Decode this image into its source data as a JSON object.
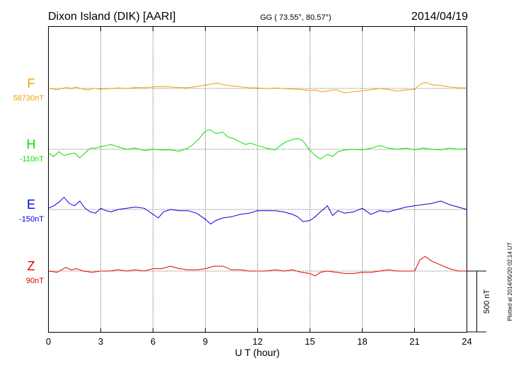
{
  "header": {
    "station": "Dixon Island (DIK)  [AARI]",
    "coords": "GG ( 73.55°,  80.57°)",
    "date": "2014/04/19"
  },
  "footer": {
    "plotted": "Plotted at 2014/05/20 02:14 UT"
  },
  "chart_data": {
    "type": "line",
    "xlabel": "U T (hour)",
    "xlim": [
      0,
      24
    ],
    "x_ticks": [
      0,
      3,
      6,
      9,
      12,
      15,
      18,
      21,
      24
    ],
    "x_tick_labels": [
      "0",
      "3",
      "6",
      "9",
      "12",
      "15",
      "18",
      "21",
      "24"
    ],
    "scale_bar": {
      "label": "500 nT",
      "value_nT": 500
    },
    "grid": true,
    "series": [
      {
        "name": "F",
        "baseline_label": "58730nT",
        "color": "#f0a000",
        "t": [
          0,
          0.5,
          1,
          1.3,
          1.6,
          2,
          2.3,
          2.6,
          3,
          3.5,
          4,
          4.5,
          5,
          5.5,
          6,
          6.5,
          7,
          7.5,
          8,
          8.5,
          9,
          9.3,
          9.7,
          10,
          10.5,
          11,
          11.5,
          12,
          12.5,
          13,
          13.5,
          14,
          14.5,
          15,
          15.3,
          15.7,
          16,
          16.5,
          17,
          17.5,
          18,
          18.5,
          19,
          19.5,
          20,
          20.5,
          21,
          21.3,
          21.6,
          22,
          22.5,
          23,
          23.5,
          24
        ],
        "v": [
          2,
          -10,
          8,
          2,
          10,
          -6,
          -12,
          2,
          -6,
          -2,
          4,
          0,
          8,
          6,
          12,
          16,
          12,
          8,
          6,
          16,
          28,
          36,
          44,
          32,
          22,
          14,
          6,
          4,
          -2,
          4,
          -2,
          -4,
          -8,
          -16,
          -12,
          -28,
          -20,
          -10,
          -36,
          -26,
          -20,
          -10,
          0,
          -8,
          -22,
          -12,
          -8,
          30,
          50,
          30,
          24,
          12,
          6,
          4
        ]
      },
      {
        "name": "H",
        "baseline_label": "-110nT",
        "color": "#00e000",
        "t": [
          0,
          0.3,
          0.6,
          0.9,
          1.2,
          1.5,
          1.8,
          2.1,
          2.4,
          2.7,
          3,
          3.3,
          3.6,
          4,
          4.5,
          5,
          5.5,
          6,
          6.5,
          7,
          7.5,
          8,
          8.3,
          8.6,
          9,
          9.3,
          9.6,
          10,
          10.3,
          10.6,
          11,
          11.3,
          11.6,
          12,
          12.5,
          13,
          13.3,
          13.6,
          14,
          14.3,
          14.6,
          15,
          15.3,
          15.6,
          16,
          16.3,
          16.6,
          17,
          17.5,
          18,
          18.5,
          19,
          19.5,
          20,
          20.5,
          21,
          21.5,
          22,
          22.5,
          23,
          23.5,
          24
        ],
        "v": [
          -30,
          -60,
          -20,
          -50,
          -40,
          -30,
          -70,
          -30,
          10,
          10,
          22,
          30,
          40,
          20,
          0,
          10,
          -10,
          0,
          -5,
          -5,
          -15,
          10,
          40,
          80,
          150,
          160,
          130,
          140,
          100,
          90,
          60,
          40,
          50,
          30,
          10,
          -5,
          30,
          60,
          80,
          90,
          70,
          -10,
          -50,
          -80,
          -40,
          -60,
          -20,
          -5,
          0,
          -5,
          10,
          30,
          10,
          0,
          10,
          -5,
          10,
          0,
          -5,
          10,
          0,
          5
        ]
      },
      {
        "name": "E",
        "baseline_label": "-150nT",
        "color": "#0000e0",
        "t": [
          0,
          0.3,
          0.6,
          0.9,
          1.2,
          1.5,
          1.8,
          2.1,
          2.4,
          2.7,
          3,
          3.3,
          3.6,
          4,
          4.5,
          5,
          5.5,
          6,
          6.3,
          6.6,
          7,
          7.5,
          8,
          8.5,
          9,
          9.3,
          9.6,
          10,
          10.5,
          11,
          11.5,
          12,
          12.5,
          13,
          13.5,
          14,
          14.3,
          14.6,
          15,
          15.3,
          15.6,
          16,
          16.3,
          16.6,
          17,
          17.5,
          18,
          18.5,
          19,
          19.5,
          20,
          20.5,
          21,
          21.5,
          22,
          22.5,
          23,
          23.5,
          24
        ],
        "v": [
          10,
          30,
          60,
          100,
          50,
          30,
          70,
          10,
          -20,
          -30,
          10,
          -10,
          -20,
          0,
          10,
          20,
          10,
          -40,
          -70,
          -20,
          0,
          -10,
          -10,
          -30,
          -80,
          -120,
          -90,
          -70,
          -60,
          -40,
          -30,
          -10,
          -10,
          -10,
          -20,
          -40,
          -60,
          -100,
          -90,
          -60,
          -20,
          30,
          -50,
          -10,
          -30,
          -20,
          10,
          -40,
          -10,
          -20,
          0,
          20,
          30,
          40,
          50,
          70,
          40,
          20,
          0
        ]
      },
      {
        "name": "Z",
        "baseline_label": "90nT",
        "color": "#e00000",
        "t": [
          0,
          0.5,
          1,
          1.3,
          1.6,
          2,
          2.5,
          3,
          3.5,
          4,
          4.5,
          5,
          5.5,
          6,
          6.5,
          7,
          7.5,
          8,
          8.5,
          9,
          9.5,
          10,
          10.5,
          11,
          11.5,
          12,
          12.5,
          13,
          13.5,
          14,
          14.5,
          15,
          15.3,
          15.6,
          16,
          16.5,
          17,
          17.5,
          18,
          18.5,
          19,
          19.5,
          20,
          20.5,
          21,
          21.3,
          21.6,
          22,
          22.5,
          23,
          23.5,
          24
        ],
        "v": [
          0,
          -10,
          30,
          10,
          20,
          0,
          -10,
          0,
          0,
          10,
          0,
          10,
          0,
          20,
          20,
          40,
          20,
          10,
          10,
          20,
          40,
          40,
          10,
          10,
          0,
          0,
          0,
          10,
          0,
          10,
          -10,
          -20,
          -40,
          -10,
          0,
          -10,
          -20,
          -20,
          -10,
          -10,
          0,
          10,
          0,
          0,
          0,
          90,
          120,
          80,
          50,
          20,
          0,
          0
        ]
      }
    ]
  }
}
